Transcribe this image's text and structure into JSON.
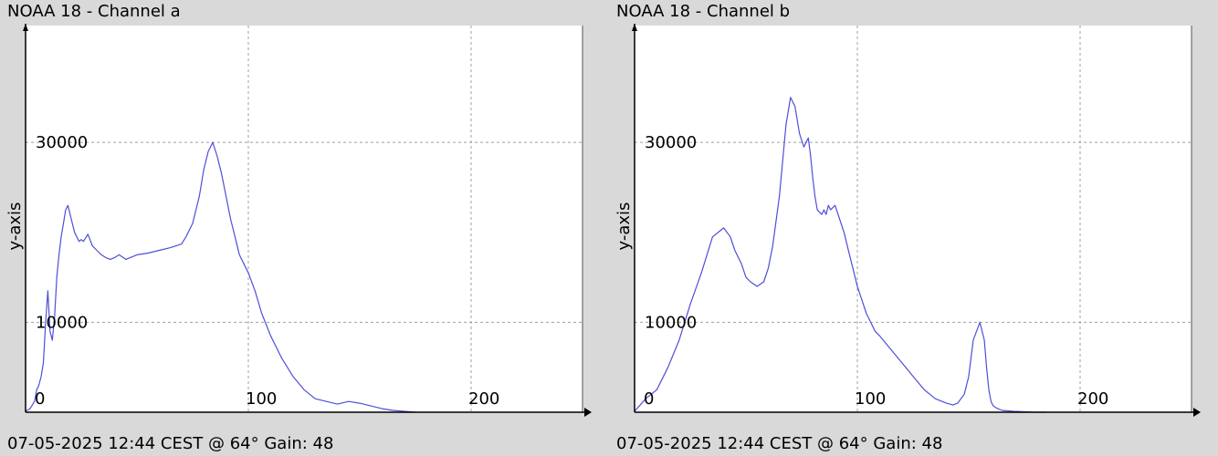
{
  "colors": {
    "background": "#d9d9d9",
    "plot_area": "#ffffff",
    "grid": "#a0a0a0",
    "series": "#4f4fd6",
    "axis": "#000000"
  },
  "chart_data": [
    {
      "type": "line",
      "title": "NOAA 18 - Channel a",
      "footer": "07-05-2025 12:44 CEST @ 64° Gain: 48",
      "xlabel": "",
      "ylabel": "y-axis",
      "xlim": [
        0,
        250
      ],
      "ylim": [
        0,
        43000
      ],
      "x_ticks": [
        0,
        100,
        200
      ],
      "y_ticks": [
        10000,
        30000
      ],
      "grid": true,
      "series": [
        {
          "x": [
            0,
            2,
            4,
            5,
            6,
            7,
            8,
            9,
            10,
            11,
            12,
            13,
            14,
            15,
            16,
            17,
            18,
            19,
            20,
            21,
            22,
            23,
            24,
            25,
            26,
            28,
            30,
            32,
            34,
            36,
            38,
            40,
            42,
            45,
            50,
            55,
            60,
            65,
            70,
            72,
            75,
            78,
            80,
            82,
            84,
            86,
            88,
            90,
            92,
            94,
            96,
            98,
            100,
            103,
            106,
            110,
            115,
            120,
            125,
            130,
            135,
            140,
            145,
            150,
            155,
            160,
            165,
            170,
            175
          ],
          "y": [
            100,
            400,
            1200,
            2500,
            3000,
            4000,
            5500,
            10000,
            13500,
            9000,
            8000,
            10500,
            15000,
            17500,
            19500,
            21000,
            22500,
            23000,
            22000,
            21000,
            20000,
            19500,
            19000,
            19200,
            19000,
            19800,
            18500,
            18000,
            17500,
            17200,
            17000,
            17200,
            17500,
            17000,
            17500,
            17700,
            18000,
            18300,
            18700,
            19500,
            21000,
            24000,
            27000,
            29000,
            30000,
            28500,
            26500,
            24000,
            21500,
            19500,
            17500,
            16500,
            15500,
            13500,
            11000,
            8500,
            6000,
            4000,
            2500,
            1500,
            1200,
            900,
            1200,
            1000,
            700,
            400,
            200,
            100,
            0
          ]
        }
      ]
    },
    {
      "type": "line",
      "title": "NOAA 18 - Channel b",
      "footer": "07-05-2025 12:44 CEST @ 64° Gain: 48",
      "xlabel": "",
      "ylabel": "y-axis",
      "xlim": [
        0,
        250
      ],
      "ylim": [
        0,
        43000
      ],
      "x_ticks": [
        0,
        100,
        200
      ],
      "y_ticks": [
        10000,
        30000
      ],
      "grid": true,
      "series": [
        {
          "x": [
            0,
            5,
            10,
            15,
            20,
            25,
            30,
            35,
            40,
            43,
            45,
            48,
            50,
            52,
            55,
            58,
            60,
            62,
            65,
            68,
            70,
            72,
            74,
            76,
            78,
            79,
            80,
            81,
            82,
            84,
            85,
            86,
            87,
            88,
            90,
            92,
            94,
            96,
            98,
            100,
            102,
            104,
            106,
            108,
            110,
            115,
            120,
            125,
            130,
            135,
            140,
            143,
            145,
            148,
            150,
            152,
            155,
            157,
            158,
            159,
            160,
            161,
            163,
            165,
            170,
            175,
            180,
            185
          ],
          "y": [
            100,
            1500,
            2500,
            5000,
            8000,
            12000,
            15500,
            19500,
            20500,
            19500,
            18000,
            16500,
            15000,
            14500,
            14000,
            14500,
            16000,
            18500,
            24000,
            32000,
            35000,
            34000,
            31000,
            29500,
            30500,
            28500,
            26000,
            24000,
            22500,
            22000,
            22500,
            22000,
            23000,
            22500,
            23000,
            21500,
            20000,
            18000,
            16000,
            14000,
            12500,
            11000,
            10000,
            9000,
            8500,
            7000,
            5500,
            4000,
            2500,
            1500,
            1000,
            800,
            1000,
            2000,
            4000,
            8000,
            10000,
            8000,
            5000,
            2500,
            1200,
            700,
            400,
            200,
            100,
            50,
            0,
            0
          ]
        }
      ]
    }
  ]
}
